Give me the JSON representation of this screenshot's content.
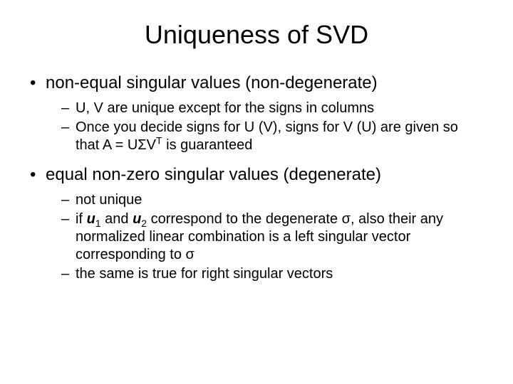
{
  "title": "Uniqueness of SVD",
  "bullets": {
    "b1": "non-equal singular values (non-degenerate)",
    "b1_s1": "U, V are unique except for the signs in columns",
    "b1_s2_pre": "Once you decide signs for U (V), signs for V (U) are given so that A = UΣV",
    "b1_s2_sup": "T",
    "b1_s2_post": " is guaranteed",
    "b2": "equal non-zero singular values (degenerate)",
    "b2_s1": "not unique",
    "b2_s2_pre": "if ",
    "b2_s2_u": "u",
    "b2_s2_sub1": "1",
    "b2_s2_mid": " and ",
    "b2_s2_u2": "u",
    "b2_s2_sub2": "2",
    "b2_s2_post": " correspond to the degenerate σ, also their any normalized linear combination is a left singular vector corresponding to σ",
    "b2_s3": "the same is true for right singular vectors"
  },
  "colors": {
    "background": "#ffffff",
    "text": "#000000"
  },
  "fonts": {
    "title_size": 36,
    "l1_size": 24,
    "l2_size": 20
  }
}
